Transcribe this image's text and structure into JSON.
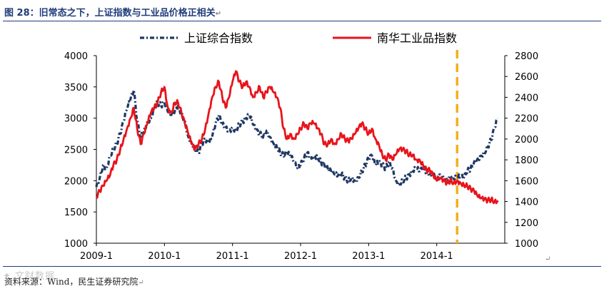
{
  "title": "图 28：旧常态之下，上证指数与工业品价格正相关",
  "return_mark": "↵",
  "source": "资料来源：Wind，民生证券研究院",
  "watermark": "✦ 文财数据",
  "chart_data": {
    "type": "line",
    "title": "图 28：旧常态之下，上证指数与工业品价格正相关",
    "x_range": [
      2009.0,
      2015.0
    ],
    "x_ticks": [
      {
        "value": 2009.0,
        "label": "2009-1"
      },
      {
        "value": 2010.0,
        "label": "2010-1"
      },
      {
        "value": 2011.0,
        "label": "2011-1"
      },
      {
        "value": 2012.0,
        "label": "2012-1"
      },
      {
        "value": 2013.0,
        "label": "2013-1"
      },
      {
        "value": 2014.0,
        "label": "2014-1"
      }
    ],
    "y_left": {
      "min": 1000,
      "max": 4000,
      "ticks": [
        1000,
        1500,
        2000,
        2500,
        3000,
        3500,
        4000
      ]
    },
    "y_right": {
      "min": 1000,
      "max": 2800,
      "ticks": [
        1000,
        1200,
        1400,
        1600,
        1800,
        2000,
        2200,
        2400,
        2600,
        2800
      ]
    },
    "marker_line": {
      "x": 2014.3,
      "color": "#f2b01e"
    },
    "series": [
      {
        "name": "上证综合指数",
        "axis": "left",
        "color": "#1f3864",
        "style": "dash-dot",
        "points": [
          [
            2009.0,
            1900
          ],
          [
            2009.05,
            2050
          ],
          [
            2009.1,
            2250
          ],
          [
            2009.15,
            2200
          ],
          [
            2009.2,
            2400
          ],
          [
            2009.25,
            2500
          ],
          [
            2009.3,
            2600
          ],
          [
            2009.35,
            2750
          ],
          [
            2009.4,
            2950
          ],
          [
            2009.45,
            3150
          ],
          [
            2009.5,
            3300
          ],
          [
            2009.55,
            3450
          ],
          [
            2009.6,
            2950
          ],
          [
            2009.65,
            2700
          ],
          [
            2009.7,
            2800
          ],
          [
            2009.75,
            2950
          ],
          [
            2009.8,
            3000
          ],
          [
            2009.85,
            3150
          ],
          [
            2009.9,
            3250
          ],
          [
            2009.95,
            3200
          ],
          [
            2010.0,
            3250
          ],
          [
            2010.05,
            3100
          ],
          [
            2010.1,
            3050
          ],
          [
            2010.15,
            3100
          ],
          [
            2010.2,
            3200
          ],
          [
            2010.25,
            3050
          ],
          [
            2010.3,
            2950
          ],
          [
            2010.35,
            2700
          ],
          [
            2010.4,
            2600
          ],
          [
            2010.45,
            2500
          ],
          [
            2010.5,
            2450
          ],
          [
            2010.55,
            2600
          ],
          [
            2010.6,
            2650
          ],
          [
            2010.65,
            2600
          ],
          [
            2010.7,
            2700
          ],
          [
            2010.75,
            2900
          ],
          [
            2010.8,
            3050
          ],
          [
            2010.85,
            2900
          ],
          [
            2010.9,
            2850
          ],
          [
            2010.95,
            2800
          ],
          [
            2011.0,
            2850
          ],
          [
            2011.05,
            2800
          ],
          [
            2011.1,
            2900
          ],
          [
            2011.15,
            2950
          ],
          [
            2011.2,
            3000
          ],
          [
            2011.25,
            3050
          ],
          [
            2011.3,
            2900
          ],
          [
            2011.35,
            2800
          ],
          [
            2011.4,
            2750
          ],
          [
            2011.45,
            2700
          ],
          [
            2011.5,
            2800
          ],
          [
            2011.55,
            2700
          ],
          [
            2011.6,
            2600
          ],
          [
            2011.65,
            2550
          ],
          [
            2011.7,
            2450
          ],
          [
            2011.75,
            2400
          ],
          [
            2011.8,
            2450
          ],
          [
            2011.85,
            2400
          ],
          [
            2011.9,
            2300
          ],
          [
            2011.95,
            2200
          ],
          [
            2012.0,
            2250
          ],
          [
            2012.05,
            2350
          ],
          [
            2012.1,
            2450
          ],
          [
            2012.15,
            2350
          ],
          [
            2012.2,
            2400
          ],
          [
            2012.25,
            2380
          ],
          [
            2012.3,
            2300
          ],
          [
            2012.35,
            2250
          ],
          [
            2012.4,
            2200
          ],
          [
            2012.45,
            2150
          ],
          [
            2012.5,
            2100
          ],
          [
            2012.55,
            2080
          ],
          [
            2012.6,
            2100
          ],
          [
            2012.65,
            2050
          ],
          [
            2012.7,
            2000
          ],
          [
            2012.75,
            2050
          ],
          [
            2012.8,
            2000
          ],
          [
            2012.85,
            2050
          ],
          [
            2012.9,
            2150
          ],
          [
            2012.95,
            2250
          ],
          [
            2013.0,
            2350
          ],
          [
            2013.05,
            2400
          ],
          [
            2013.1,
            2250
          ],
          [
            2013.15,
            2300
          ],
          [
            2013.2,
            2250
          ],
          [
            2013.25,
            2200
          ],
          [
            2013.3,
            2300
          ],
          [
            2013.35,
            2200
          ],
          [
            2013.4,
            2000
          ],
          [
            2013.45,
            1950
          ],
          [
            2013.5,
            2000
          ],
          [
            2013.55,
            2050
          ],
          [
            2013.6,
            2100
          ],
          [
            2013.65,
            2150
          ],
          [
            2013.7,
            2200
          ],
          [
            2013.75,
            2150
          ],
          [
            2013.8,
            2200
          ],
          [
            2013.85,
            2150
          ],
          [
            2013.9,
            2100
          ],
          [
            2013.95,
            2100
          ],
          [
            2014.0,
            2050
          ],
          [
            2014.05,
            2100
          ],
          [
            2014.1,
            2050
          ],
          [
            2014.15,
            2000
          ],
          [
            2014.2,
            2050
          ],
          [
            2014.25,
            2030
          ],
          [
            2014.3,
            2050
          ],
          [
            2014.35,
            2060
          ],
          [
            2014.4,
            2050
          ],
          [
            2014.45,
            2150
          ],
          [
            2014.5,
            2200
          ],
          [
            2014.55,
            2300
          ],
          [
            2014.6,
            2350
          ],
          [
            2014.65,
            2400
          ],
          [
            2014.7,
            2450
          ],
          [
            2014.75,
            2550
          ],
          [
            2014.8,
            2650
          ],
          [
            2014.85,
            2850
          ],
          [
            2014.9,
            3000
          ]
        ]
      },
      {
        "name": "南华工业品指数",
        "axis": "right",
        "color": "#e8141b",
        "style": "solid",
        "points": [
          [
            2009.0,
            1450
          ],
          [
            2009.05,
            1500
          ],
          [
            2009.1,
            1550
          ],
          [
            2009.15,
            1600
          ],
          [
            2009.2,
            1650
          ],
          [
            2009.25,
            1750
          ],
          [
            2009.3,
            1800
          ],
          [
            2009.35,
            1900
          ],
          [
            2009.4,
            2000
          ],
          [
            2009.45,
            2100
          ],
          [
            2009.5,
            2200
          ],
          [
            2009.55,
            2300
          ],
          [
            2009.6,
            2100
          ],
          [
            2009.65,
            1950
          ],
          [
            2009.7,
            2050
          ],
          [
            2009.75,
            2150
          ],
          [
            2009.8,
            2250
          ],
          [
            2009.85,
            2300
          ],
          [
            2009.9,
            2350
          ],
          [
            2009.95,
            2450
          ],
          [
            2010.0,
            2500
          ],
          [
            2010.05,
            2300
          ],
          [
            2010.1,
            2250
          ],
          [
            2010.15,
            2350
          ],
          [
            2010.2,
            2350
          ],
          [
            2010.25,
            2250
          ],
          [
            2010.3,
            2150
          ],
          [
            2010.35,
            2050
          ],
          [
            2010.4,
            1950
          ],
          [
            2010.45,
            1900
          ],
          [
            2010.5,
            1950
          ],
          [
            2010.55,
            2000
          ],
          [
            2010.6,
            2100
          ],
          [
            2010.65,
            2250
          ],
          [
            2010.7,
            2400
          ],
          [
            2010.75,
            2500
          ],
          [
            2010.8,
            2550
          ],
          [
            2010.85,
            2400
          ],
          [
            2010.9,
            2300
          ],
          [
            2010.95,
            2400
          ],
          [
            2011.0,
            2550
          ],
          [
            2011.05,
            2650
          ],
          [
            2011.1,
            2550
          ],
          [
            2011.15,
            2500
          ],
          [
            2011.2,
            2550
          ],
          [
            2011.25,
            2500
          ],
          [
            2011.3,
            2400
          ],
          [
            2011.35,
            2450
          ],
          [
            2011.4,
            2500
          ],
          [
            2011.45,
            2400
          ],
          [
            2011.5,
            2450
          ],
          [
            2011.55,
            2500
          ],
          [
            2011.6,
            2450
          ],
          [
            2011.65,
            2400
          ],
          [
            2011.7,
            2300
          ],
          [
            2011.75,
            2100
          ],
          [
            2011.8,
            2000
          ],
          [
            2011.85,
            2050
          ],
          [
            2011.9,
            2000
          ],
          [
            2011.95,
            2050
          ],
          [
            2012.0,
            2100
          ],
          [
            2012.05,
            2150
          ],
          [
            2012.1,
            2100
          ],
          [
            2012.15,
            2150
          ],
          [
            2012.2,
            2150
          ],
          [
            2012.25,
            2100
          ],
          [
            2012.3,
            2050
          ],
          [
            2012.35,
            1950
          ],
          [
            2012.4,
            1950
          ],
          [
            2012.45,
            2000
          ],
          [
            2012.5,
            1950
          ],
          [
            2012.55,
            2000
          ],
          [
            2012.6,
            2050
          ],
          [
            2012.65,
            2000
          ],
          [
            2012.7,
            1980
          ],
          [
            2012.75,
            2000
          ],
          [
            2012.8,
            2050
          ],
          [
            2012.85,
            2100
          ],
          [
            2012.9,
            2150
          ],
          [
            2012.95,
            2100
          ],
          [
            2013.0,
            2050
          ],
          [
            2013.05,
            2100
          ],
          [
            2013.1,
            2000
          ],
          [
            2013.15,
            1950
          ],
          [
            2013.2,
            1850
          ],
          [
            2013.25,
            1800
          ],
          [
            2013.3,
            1850
          ],
          [
            2013.35,
            1800
          ],
          [
            2013.4,
            1850
          ],
          [
            2013.45,
            1900
          ],
          [
            2013.5,
            1900
          ],
          [
            2013.55,
            1880
          ],
          [
            2013.6,
            1850
          ],
          [
            2013.65,
            1850
          ],
          [
            2013.7,
            1800
          ],
          [
            2013.75,
            1800
          ],
          [
            2013.8,
            1750
          ],
          [
            2013.85,
            1700
          ],
          [
            2013.9,
            1700
          ],
          [
            2013.95,
            1650
          ],
          [
            2014.0,
            1600
          ],
          [
            2014.05,
            1620
          ],
          [
            2014.1,
            1600
          ],
          [
            2014.15,
            1580
          ],
          [
            2014.2,
            1600
          ],
          [
            2014.25,
            1580
          ],
          [
            2014.3,
            1600
          ],
          [
            2014.35,
            1580
          ],
          [
            2014.4,
            1560
          ],
          [
            2014.45,
            1550
          ],
          [
            2014.5,
            1520
          ],
          [
            2014.55,
            1500
          ],
          [
            2014.6,
            1450
          ],
          [
            2014.65,
            1430
          ],
          [
            2014.7,
            1420
          ],
          [
            2014.75,
            1410
          ],
          [
            2014.8,
            1420
          ],
          [
            2014.85,
            1400
          ],
          [
            2014.9,
            1410
          ]
        ]
      }
    ]
  }
}
